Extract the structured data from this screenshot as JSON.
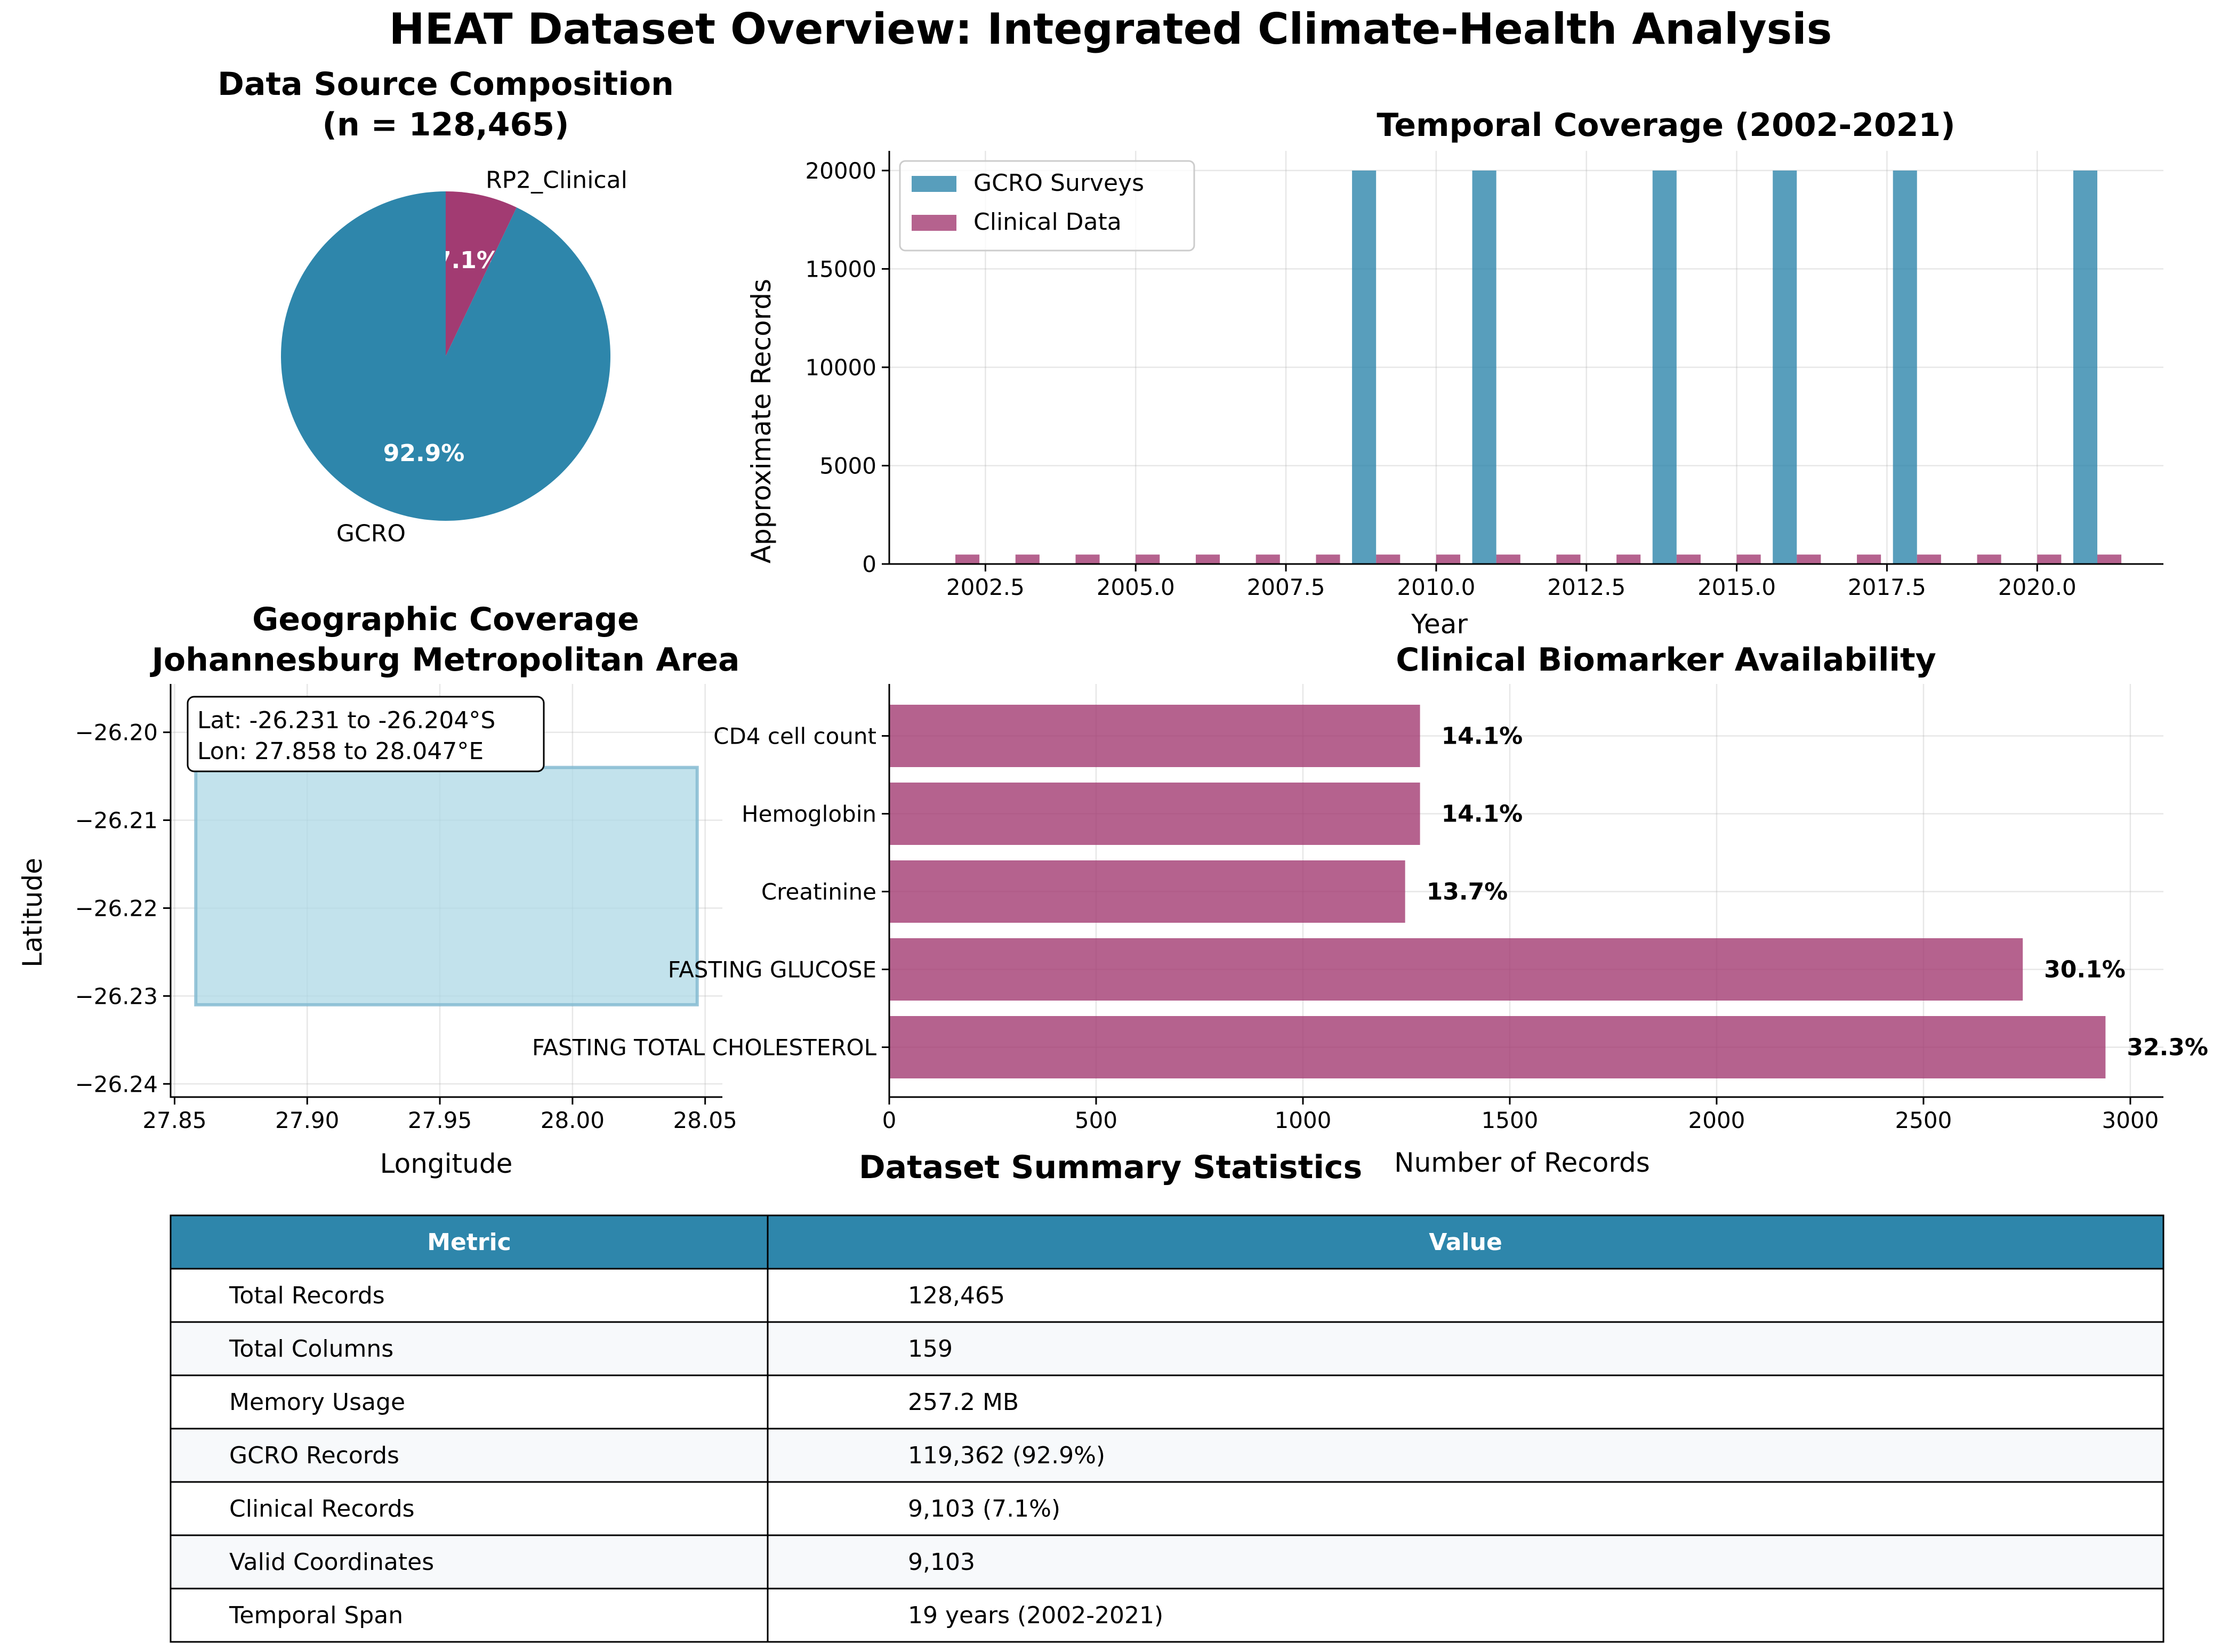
{
  "figure_title": "HEAT Dataset Overview: Integrated Climate-Health Analysis",
  "colors": {
    "gcro": "#2E86AB",
    "clinical": "#A23B72",
    "region_fill": "#ADD8E6",
    "table_header": "#2E86AB",
    "table_stripe": "#F7F9FB"
  },
  "chart_data": [
    {
      "id": "pie",
      "type": "pie",
      "title_line1": "Data Source Composition",
      "title_line2": "(n = 128,465)",
      "slices": [
        {
          "label": "RP2_Clinical",
          "value": 9103,
          "pct_label": "7.1%",
          "color": "#A23B72"
        },
        {
          "label": "GCRO",
          "value": 119362,
          "pct_label": "92.9%",
          "color": "#2E86AB"
        }
      ]
    },
    {
      "id": "temporal",
      "type": "bar",
      "title": "Temporal Coverage (2002-2021)",
      "xlabel": "Year",
      "ylabel": "Approximate Records",
      "xlim": [
        2000.9,
        2022.1
      ],
      "ylim": [
        0,
        21000
      ],
      "xticks": [
        2002.5,
        2005.0,
        2007.5,
        2010.0,
        2012.5,
        2015.0,
        2017.5,
        2020.0
      ],
      "xtick_labels": [
        "2002.5",
        "2005.0",
        "2007.5",
        "2010.0",
        "2012.5",
        "2015.0",
        "2017.5",
        "2020.0"
      ],
      "yticks": [
        0,
        5000,
        10000,
        15000,
        20000
      ],
      "ytick_labels": [
        "0",
        "5000",
        "10000",
        "15000",
        "20000"
      ],
      "legend_position": "top-left",
      "bar_width": 0.4,
      "series": [
        {
          "name": "GCRO Surveys",
          "color": "#2E86AB",
          "x": [
            2008.8,
            2010.8,
            2013.8,
            2015.8,
            2017.8,
            2020.8
          ],
          "values": [
            20000,
            20000,
            20000,
            20000,
            20000,
            20000
          ]
        },
        {
          "name": "Clinical Data",
          "color": "#A23B72",
          "x": [
            2002.2,
            2003.2,
            2004.2,
            2005.2,
            2006.2,
            2007.2,
            2008.2,
            2009.2,
            2010.2,
            2011.2,
            2012.2,
            2013.2,
            2014.2,
            2015.2,
            2016.2,
            2017.2,
            2018.2,
            2019.2,
            2020.2,
            2021.2
          ],
          "values": [
            479,
            479,
            479,
            479,
            479,
            479,
            479,
            479,
            479,
            479,
            479,
            479,
            479,
            479,
            479,
            479,
            479,
            479,
            479,
            479
          ]
        }
      ]
    },
    {
      "id": "geo",
      "type": "area",
      "title_line1": "Geographic Coverage",
      "title_line2": "Johannesburg Metropolitan Area",
      "xlabel": "Longitude",
      "ylabel": "Latitude",
      "xlim": [
        27.8485,
        28.0565
      ],
      "ylim": [
        -26.2415,
        -26.1945
      ],
      "xticks": [
        27.85,
        27.9,
        27.95,
        28.0,
        28.05
      ],
      "xtick_labels": [
        "27.85",
        "27.90",
        "27.95",
        "28.00",
        "28.05"
      ],
      "yticks": [
        -26.2,
        -26.21,
        -26.22,
        -26.23,
        -26.24
      ],
      "ytick_labels": [
        "−26.20",
        "−26.21",
        "−26.22",
        "−26.23",
        "−26.24"
      ],
      "region": {
        "lon_min": 27.858,
        "lon_max": 28.047,
        "lat_min": -26.231,
        "lat_max": -26.204
      },
      "annotation_line1": "Lat: -26.231 to -26.204°S",
      "annotation_line2": "Lon: 27.858 to 28.047°E"
    },
    {
      "id": "biomarkers",
      "type": "bar",
      "orientation": "horizontal",
      "title": "Clinical Biomarker Availability",
      "xlabel": "Number of Records",
      "xlim": [
        0,
        3080
      ],
      "xticks": [
        0,
        500,
        1000,
        1500,
        2000,
        2500,
        3000
      ],
      "xtick_labels": [
        "0",
        "500",
        "1000",
        "1500",
        "2000",
        "2500",
        "3000"
      ],
      "color": "#A23B72",
      "categories": [
        "CD4 cell count",
        "Hemoglobin",
        "Creatinine",
        "FASTING GLUCOSE",
        "FASTING TOTAL CHOLESTEROL"
      ],
      "values": [
        1283,
        1283,
        1247,
        2740,
        2940
      ],
      "labels": [
        "14.1%",
        "14.1%",
        "13.7%",
        "30.1%",
        "32.3%"
      ]
    },
    {
      "id": "summary",
      "type": "table",
      "title": "Dataset Summary Statistics",
      "columns": [
        "Metric",
        "Value"
      ],
      "rows": [
        [
          "Total Records",
          "128,465"
        ],
        [
          "Total Columns",
          "159"
        ],
        [
          "Memory Usage",
          "257.2 MB"
        ],
        [
          "GCRO Records",
          "119,362 (92.9%)"
        ],
        [
          "Clinical Records",
          "9,103 (7.1%)"
        ],
        [
          "Valid Coordinates",
          "9,103"
        ],
        [
          "Temporal Span",
          "19 years (2002-2021)"
        ]
      ]
    }
  ]
}
